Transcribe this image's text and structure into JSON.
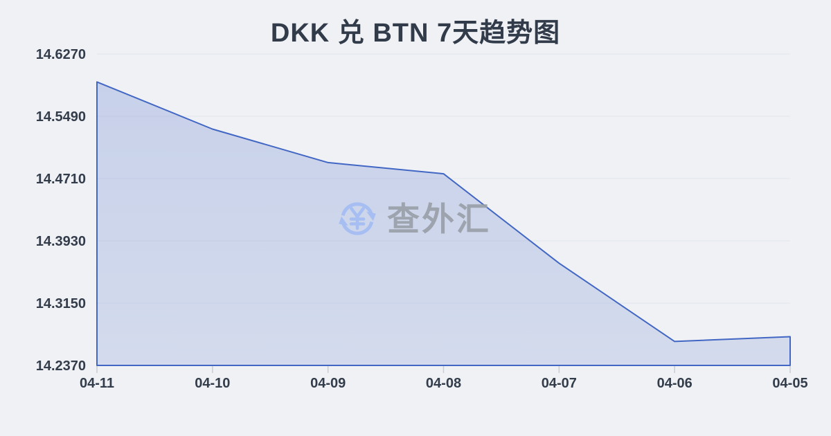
{
  "title": "DKK 兑 BTN 7天趋势图",
  "watermark": {
    "text": "查外汇"
  },
  "chart_data": {
    "type": "area",
    "title": "DKK 兑 BTN 7天趋势图",
    "categories": [
      "04-11",
      "04-10",
      "04-09",
      "04-08",
      "04-07",
      "04-06",
      "04-05"
    ],
    "series": [
      {
        "name": "DKK/BTN",
        "values": [
          14.592,
          14.533,
          14.491,
          14.477,
          14.365,
          14.267,
          14.273
        ]
      }
    ],
    "y_tick_labels": [
      "14.6270",
      "14.5490",
      "14.4710",
      "14.3930",
      "14.3150",
      "14.2370"
    ],
    "ylim": [
      14.237,
      14.627
    ],
    "xlabel": "",
    "ylabel": "",
    "grid": true,
    "legend": "none",
    "colors": {
      "background": "#eff1f4",
      "line": "#4166c4",
      "fill": "#7b93d6",
      "grid": "#e2e5eb",
      "tick": "#c9cdd5",
      "label": "#333c4a",
      "title": "#323b49",
      "watermark_icon": "#a3bdf2",
      "watermark_text": "#9aa0a9"
    }
  }
}
